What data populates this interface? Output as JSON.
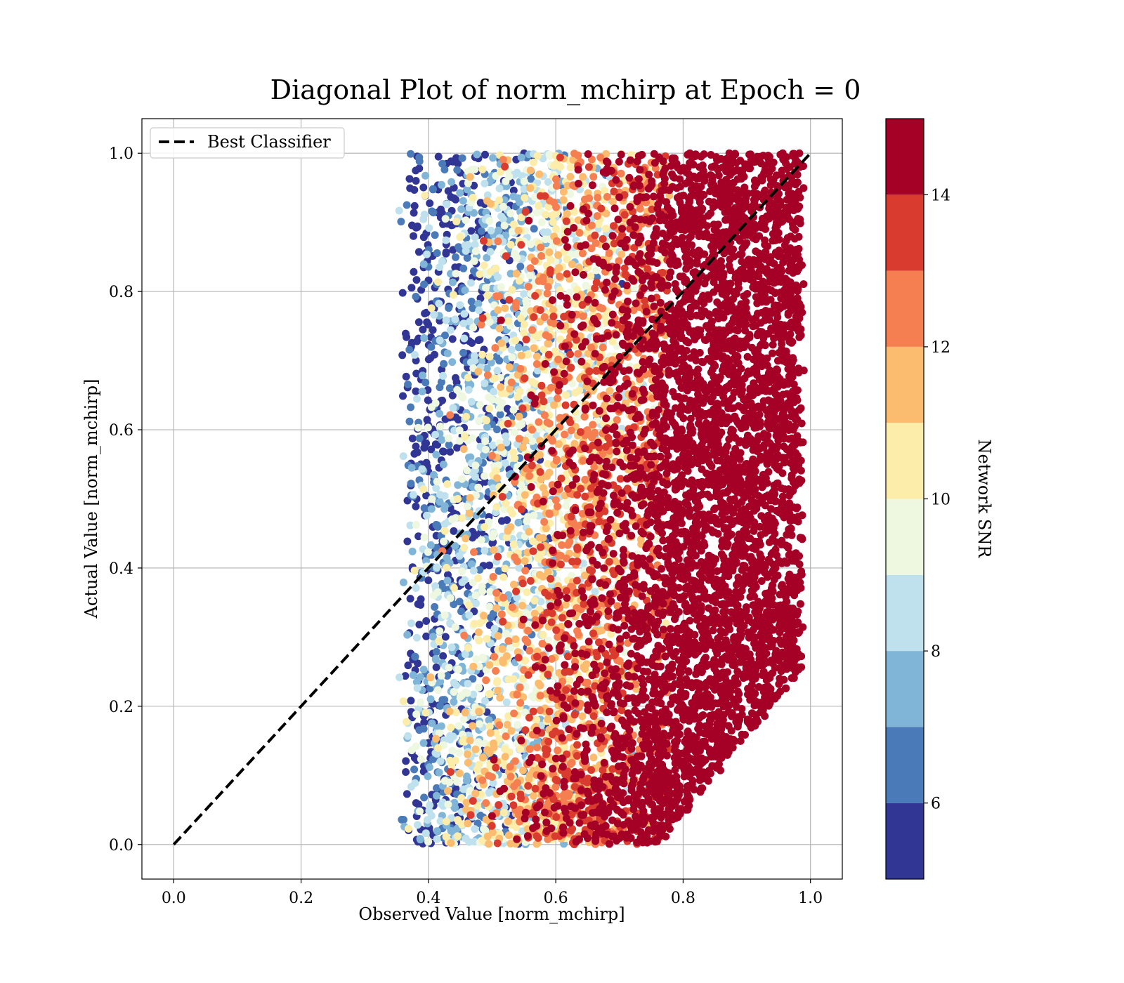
{
  "chart_data": {
    "type": "scatter",
    "title": "Diagonal Plot of norm_mchirp at Epoch = 0",
    "xlabel": "Observed Value [norm_mchirp]",
    "ylabel": "Actual Value [norm_mchirp]",
    "xlim": [
      -0.05,
      1.05
    ],
    "ylim": [
      -0.05,
      1.05
    ],
    "xticks": [
      "0.0",
      "0.2",
      "0.4",
      "0.6",
      "0.8",
      "1.0"
    ],
    "yticks": [
      "0.0",
      "0.2",
      "0.4",
      "0.6",
      "0.8",
      "1.0"
    ],
    "grid": true,
    "legend": {
      "position": "top-left",
      "entries": [
        "Best Classifier"
      ]
    },
    "reference_line": {
      "name": "Best Classifier",
      "x": [
        0.0,
        1.0
      ],
      "y": [
        0.0,
        1.0
      ],
      "style": "dashed",
      "color": "#000000"
    },
    "scatter": {
      "x_range": [
        0.35,
        0.99
      ],
      "y_range": [
        0.0,
        1.0
      ],
      "color_by": "Network SNR",
      "description_points": "dense cloud; color increases with observed value"
    },
    "colorbar": {
      "label": "Network SNR",
      "range": [
        5,
        15
      ],
      "tick_values": [
        6,
        8,
        10,
        12,
        14
      ],
      "tick_labels": [
        "6",
        "8",
        "10",
        "12",
        "14"
      ],
      "levels": [
        5,
        6,
        7,
        8,
        9,
        10,
        11,
        12,
        13,
        14,
        15
      ],
      "colors": [
        "#313695",
        "#4a7ab7",
        "#80b5d7",
        "#bfe1ed",
        "#eef7e0",
        "#fdedaa",
        "#fcbc70",
        "#f57f50",
        "#d93b2e",
        "#a50026"
      ]
    }
  }
}
